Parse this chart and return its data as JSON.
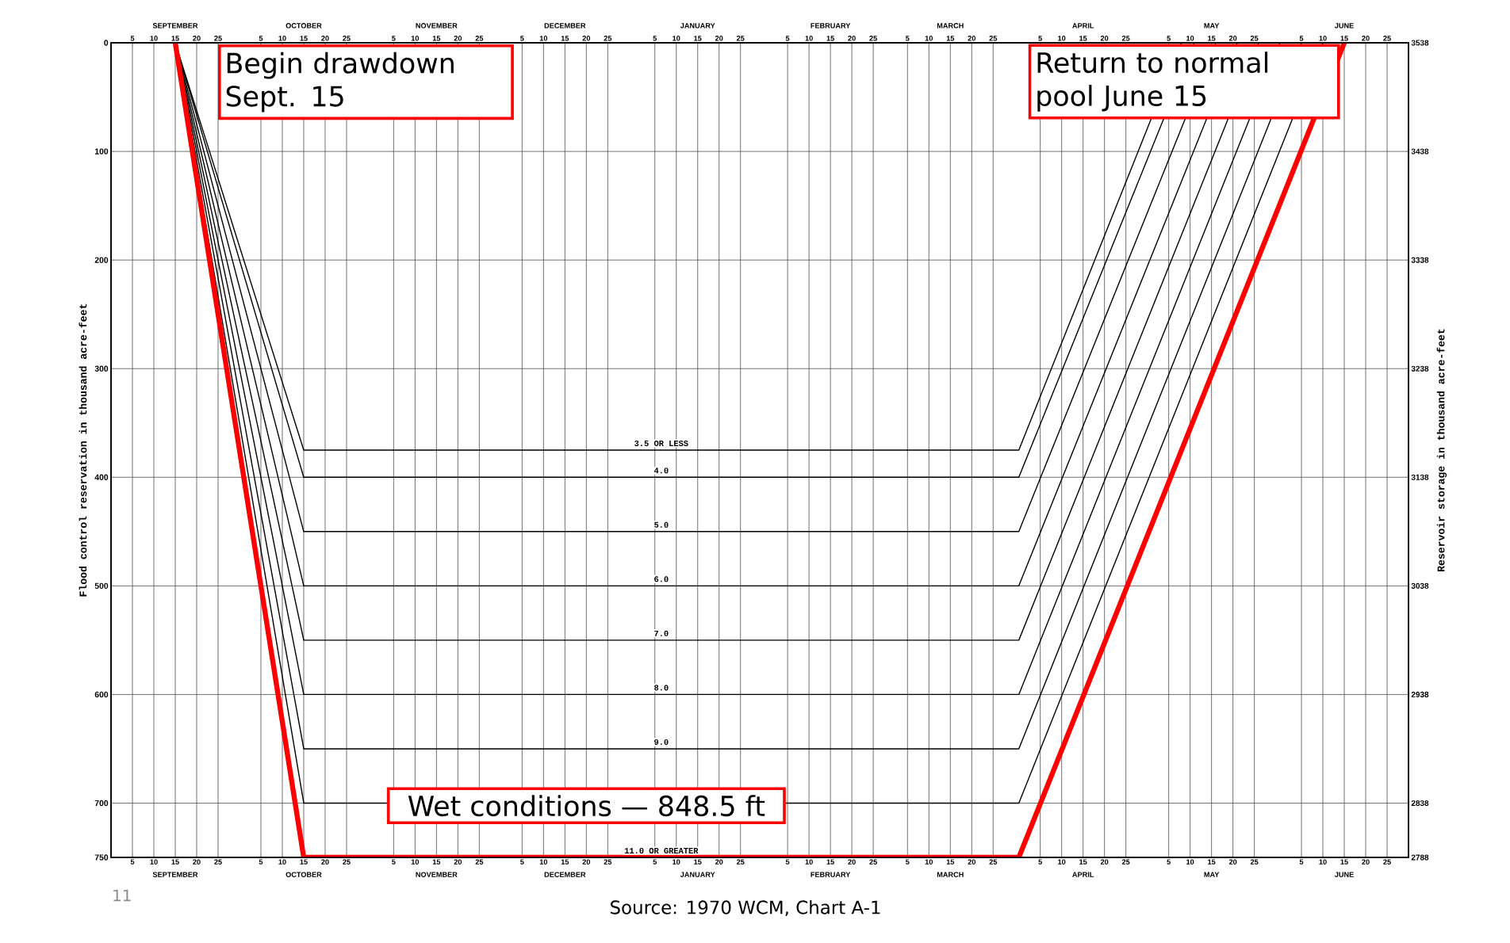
{
  "chart_data": {
    "type": "line",
    "ylabel": "Flood control reservation in thousand acre-feet",
    "y2label": "Reservoir storage in thousand acre-feet",
    "xlim": [
      "1969-08-31",
      "1970-06-30"
    ],
    "ylim": [
      750,
      0
    ],
    "y2lim": [
      2788,
      3538
    ],
    "x2lim": [
      "1969-08-31",
      "1970-06-30"
    ],
    "yticks": [
      0,
      100,
      200,
      300,
      400,
      500,
      600,
      700,
      750
    ],
    "y2ticks": [
      3538,
      3438,
      3338,
      3238,
      3138,
      3038,
      2938,
      2838,
      2788
    ],
    "xticks": [
      {
        "value": "1969-09-05",
        "label": "5"
      },
      {
        "value": "1969-09-10",
        "label": "10"
      },
      {
        "value": "1969-09-15",
        "label": "15"
      },
      {
        "value": "1969-09-20",
        "label": "20"
      },
      {
        "value": "1969-09-25",
        "label": "25"
      },
      {
        "value": "1969-10-05",
        "label": "5"
      },
      {
        "value": "1969-10-10",
        "label": "10"
      },
      {
        "value": "1969-10-15",
        "label": "15"
      },
      {
        "value": "1969-10-20",
        "label": "20"
      },
      {
        "value": "1969-10-25",
        "label": "25"
      },
      {
        "value": "1969-11-05",
        "label": "5"
      },
      {
        "value": "1969-11-10",
        "label": "10"
      },
      {
        "value": "1969-11-15",
        "label": "15"
      },
      {
        "value": "1969-11-20",
        "label": "20"
      },
      {
        "value": "1969-11-25",
        "label": "25"
      },
      {
        "value": "1969-12-05",
        "label": "5"
      },
      {
        "value": "1969-12-10",
        "label": "10"
      },
      {
        "value": "1969-12-15",
        "label": "15"
      },
      {
        "value": "1969-12-20",
        "label": "20"
      },
      {
        "value": "1969-12-25",
        "label": "25"
      },
      {
        "value": "1970-01-05",
        "label": "5"
      },
      {
        "value": "1970-01-10",
        "label": "10"
      },
      {
        "value": "1970-01-15",
        "label": "15"
      },
      {
        "value": "1970-01-20",
        "label": "20"
      },
      {
        "value": "1970-01-25",
        "label": "25"
      },
      {
        "value": "1970-02-05",
        "label": "5"
      },
      {
        "value": "1970-02-10",
        "label": "10"
      },
      {
        "value": "1970-02-15",
        "label": "15"
      },
      {
        "value": "1970-02-20",
        "label": "20"
      },
      {
        "value": "1970-02-25",
        "label": "25"
      },
      {
        "value": "1970-03-05",
        "label": "5"
      },
      {
        "value": "1970-03-10",
        "label": "10"
      },
      {
        "value": "1970-03-15",
        "label": "15"
      },
      {
        "value": "1970-03-20",
        "label": "20"
      },
      {
        "value": "1970-03-25",
        "label": "25"
      },
      {
        "value": "1970-04-05",
        "label": "5"
      },
      {
        "value": "1970-04-10",
        "label": "10"
      },
      {
        "value": "1970-04-15",
        "label": "15"
      },
      {
        "value": "1970-04-20",
        "label": "20"
      },
      {
        "value": "1970-04-25",
        "label": "25"
      },
      {
        "value": "1970-05-05",
        "label": "5"
      },
      {
        "value": "1970-05-10",
        "label": "10"
      },
      {
        "value": "1970-05-15",
        "label": "15"
      },
      {
        "value": "1970-05-20",
        "label": "20"
      },
      {
        "value": "1970-05-25",
        "label": "25"
      },
      {
        "value": "1970-06-05",
        "label": "5"
      },
      {
        "value": "1970-06-10",
        "label": "10"
      },
      {
        "value": "1970-06-15",
        "label": "15"
      },
      {
        "value": "1970-06-20",
        "label": "20"
      },
      {
        "value": "1970-06-25",
        "label": "25"
      }
    ],
    "x2ticks": [
      {
        "value": "1969-09-05",
        "label": "5"
      },
      {
        "value": "1969-09-10",
        "label": "10"
      },
      {
        "value": "1969-09-15",
        "label": "15"
      },
      {
        "value": "1969-09-20",
        "label": "20"
      },
      {
        "value": "1969-09-25",
        "label": "25"
      },
      {
        "value": "1969-10-05",
        "label": "5"
      },
      {
        "value": "1969-10-10",
        "label": "10"
      },
      {
        "value": "1969-10-15",
        "label": "15"
      },
      {
        "value": "1969-10-20",
        "label": "20"
      },
      {
        "value": "1969-10-25",
        "label": "25"
      },
      {
        "value": "1969-11-05",
        "label": "5"
      },
      {
        "value": "1969-11-10",
        "label": "10"
      },
      {
        "value": "1969-11-15",
        "label": "15"
      },
      {
        "value": "1969-11-20",
        "label": "20"
      },
      {
        "value": "1969-11-25",
        "label": "25"
      },
      {
        "value": "1969-12-05",
        "label": "5"
      },
      {
        "value": "1969-12-10",
        "label": "10"
      },
      {
        "value": "1969-12-15",
        "label": "15"
      },
      {
        "value": "1969-12-20",
        "label": "20"
      },
      {
        "value": "1969-12-25",
        "label": "25"
      },
      {
        "value": "1970-01-05",
        "label": "5"
      },
      {
        "value": "1970-01-10",
        "label": "10"
      },
      {
        "value": "1970-01-15",
        "label": "15"
      },
      {
        "value": "1970-01-20",
        "label": "20"
      },
      {
        "value": "1970-01-25",
        "label": "25"
      },
      {
        "value": "1970-02-05",
        "label": "5"
      },
      {
        "value": "1970-02-10",
        "label": "10"
      },
      {
        "value": "1970-02-15",
        "label": "15"
      },
      {
        "value": "1970-02-20",
        "label": "20"
      },
      {
        "value": "1970-02-25",
        "label": "25"
      },
      {
        "value": "1970-03-05",
        "label": "5"
      },
      {
        "value": "1970-03-10",
        "label": "10"
      },
      {
        "value": "1970-03-15",
        "label": "15"
      },
      {
        "value": "1970-03-20",
        "label": "20"
      },
      {
        "value": "1970-03-25",
        "label": "25"
      },
      {
        "value": "1970-04-05",
        "label": "5"
      },
      {
        "value": "1970-04-10",
        "label": "10"
      },
      {
        "value": "1970-04-15",
        "label": "15"
      },
      {
        "value": "1970-04-20",
        "label": "20"
      },
      {
        "value": "1970-04-25",
        "label": "25"
      },
      {
        "value": "1970-05-05",
        "label": "5"
      },
      {
        "value": "1970-05-10",
        "label": "10"
      },
      {
        "value": "1970-05-15",
        "label": "15"
      },
      {
        "value": "1970-05-20",
        "label": "20"
      },
      {
        "value": "1970-05-25",
        "label": "25"
      },
      {
        "value": "1970-06-05",
        "label": "5"
      },
      {
        "value": "1970-06-10",
        "label": "10"
      },
      {
        "value": "1970-06-15",
        "label": "15"
      },
      {
        "value": "1970-06-20",
        "label": "20"
      },
      {
        "value": "1970-06-25",
        "label": "25"
      }
    ],
    "grid": true,
    "marker": "none",
    "line_style": "solid",
    "series": [
      {
        "name": "3.5 OR LESS",
        "color": "#000000",
        "x": [
          "1969-09-15",
          "1969-10-15",
          "1970-03-31",
          "1970-05-08"
        ],
        "values": [
          0,
          375,
          375,
          0
        ]
      },
      {
        "name": "4.0",
        "color": "#000000",
        "x": [
          "1969-09-15",
          "1969-10-15",
          "1970-03-31",
          "1970-05-11"
        ],
        "values": [
          0,
          400,
          400,
          0
        ]
      },
      {
        "name": "5.0",
        "color": "#000000",
        "x": [
          "1969-09-15",
          "1969-10-15",
          "1970-03-31",
          "1970-05-16"
        ],
        "values": [
          0,
          450,
          450,
          0
        ]
      },
      {
        "name": "6.0",
        "color": "#000000",
        "x": [
          "1969-09-15",
          "1969-10-15",
          "1970-03-31",
          "1970-05-21"
        ],
        "values": [
          0,
          500,
          500,
          0
        ]
      },
      {
        "name": "7.0",
        "color": "#000000",
        "x": [
          "1969-09-15",
          "1969-10-15",
          "1970-03-31",
          "1970-05-26"
        ],
        "values": [
          0,
          550,
          550,
          0
        ]
      },
      {
        "name": "8.0",
        "color": "#000000",
        "x": [
          "1969-09-15",
          "1969-10-15",
          "1970-03-31",
          "1970-05-31"
        ],
        "values": [
          0,
          600,
          600,
          0
        ]
      },
      {
        "name": "9.0",
        "color": "#000000",
        "x": [
          "1969-09-15",
          "1969-10-15",
          "1970-03-31",
          "1970-06-05"
        ],
        "values": [
          0,
          650,
          650,
          0
        ]
      },
      {
        "color": "#000000",
        "x": [
          "1969-09-15",
          "1969-10-15",
          "1970-03-31",
          "1970-06-10"
        ],
        "values": [
          0,
          700,
          700,
          0
        ]
      },
      {
        "name": "11.0 OR GREATER",
        "color": "#ff0000",
        "x": [
          "1969-09-15",
          "1969-10-15",
          "1970-03-31",
          "1970-06-15"
        ],
        "values": [
          0,
          750,
          750,
          0
        ]
      }
    ],
    "annotations": [
      {
        "text": "Begin drawdown Sept. 15",
        "x": "1969-09-15",
        "y": 0
      },
      "Return to normal pool June 15",
      {
        "text": "Wet conditions — 848.5 ft",
        "x": "1969-12-20",
        "y": 750
      },
      "SEPTEMBER",
      "OCTOBER",
      "NOVEMBER",
      "DECEMBER",
      "JANUARY",
      "FEBRUARY",
      "MARCH",
      "APRIL",
      "MAY",
      "JUNE",
      "SEPTEMBER",
      "OCTOBER",
      "NOVEMBER",
      "DECEMBER",
      "JANUARY",
      "FEBRUARY",
      "MARCH",
      "APRIL",
      "MAY",
      "JUNE",
      "11",
      "Source: 1970 WCM, Chart A-1"
    ]
  }
}
